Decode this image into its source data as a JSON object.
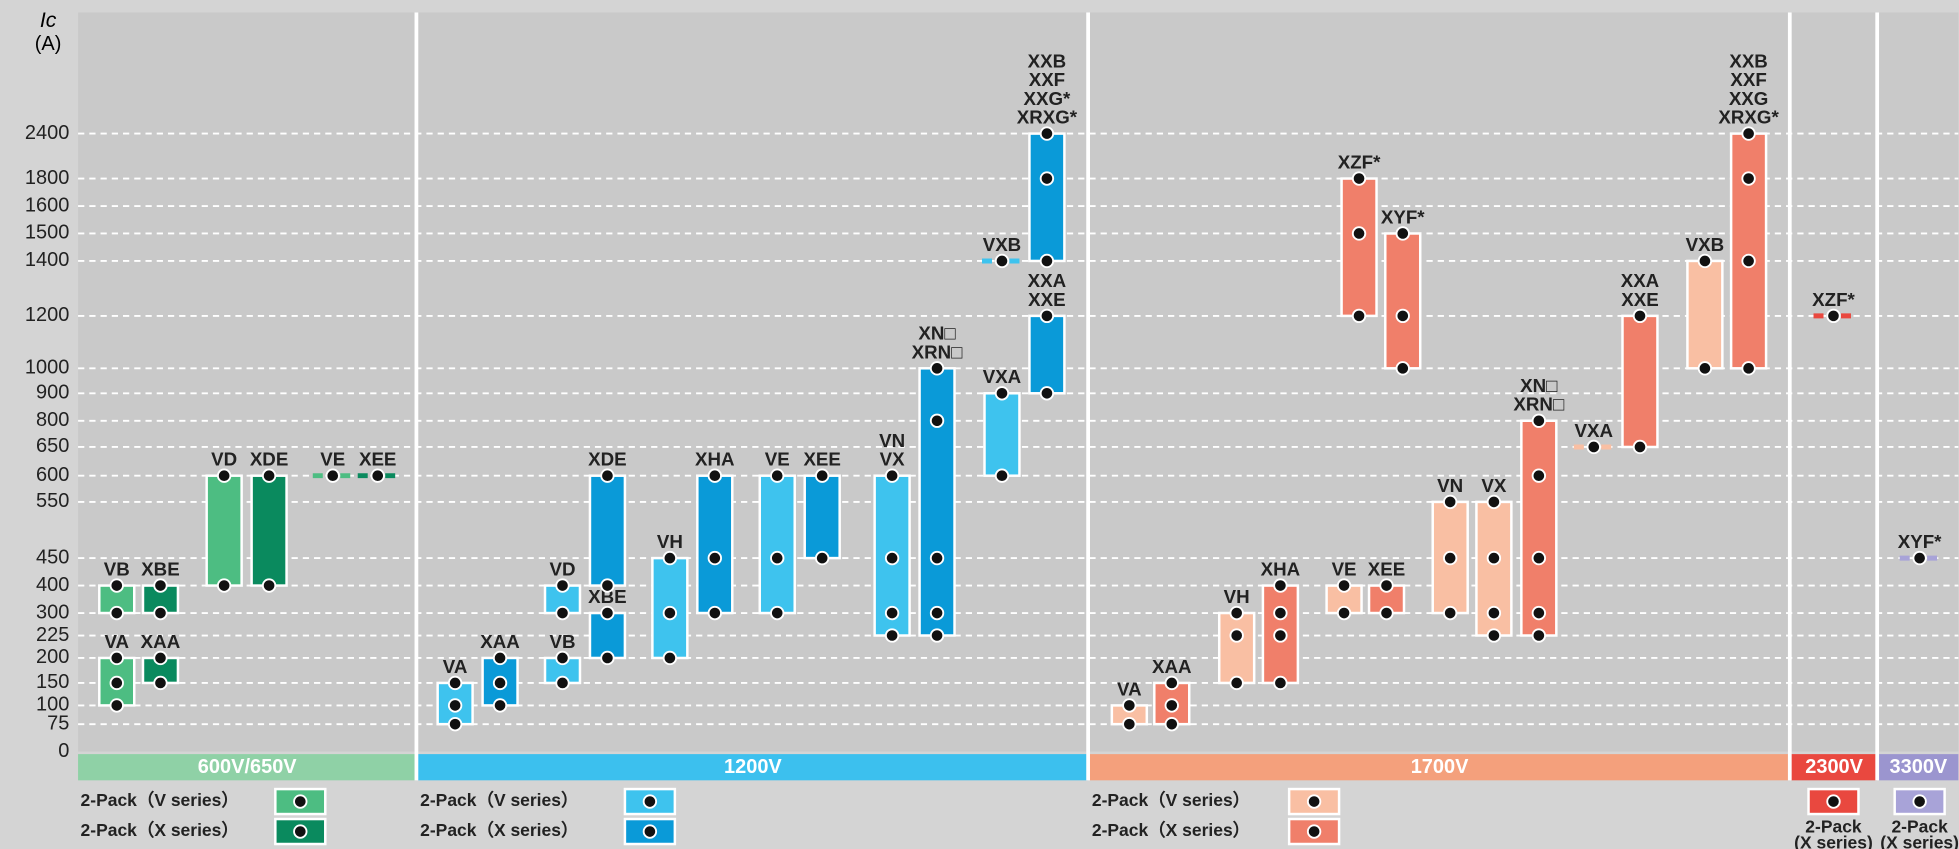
{
  "chart_data": {
    "type": "range",
    "y_label": "Ic",
    "y_unit": "(A)",
    "ylim": [
      0,
      2400
    ],
    "yticks": [
      0,
      75,
      100,
      150,
      200,
      225,
      300,
      400,
      450,
      550,
      600,
      650,
      800,
      900,
      1000,
      1200,
      1400,
      1500,
      1600,
      1800,
      2400
    ],
    "grid": true,
    "groups": [
      {
        "name": "600V/650V",
        "color": "#8fd1a6",
        "series": [
          {
            "name": "2-Pack（V series）",
            "color": "#4dbd82",
            "bars": [
              {
                "label": "VA",
                "values": [
                  100,
                  150,
                  200
                ]
              },
              {
                "label": "VB",
                "values": [
                  300,
                  400
                ]
              },
              {
                "label": "VD",
                "values": [
                  400,
                  600
                ]
              },
              {
                "label": "VE",
                "values": [
                  600
                ]
              }
            ]
          },
          {
            "name": "2-Pack（X series）",
            "color": "#0a8a5e",
            "bars": [
              {
                "label": "XAA",
                "values": [
                  150,
                  200
                ]
              },
              {
                "label": "XBE",
                "values": [
                  300,
                  400
                ]
              },
              {
                "label": "XDE",
                "values": [
                  400,
                  600
                ]
              },
              {
                "label": "XEE",
                "values": [
                  600
                ]
              }
            ]
          }
        ]
      },
      {
        "name": "1200V",
        "color": "#3cc0ee",
        "series": [
          {
            "name": "2-Pack（V series）",
            "color": "#3ec3ee",
            "bars": [
              {
                "label": "VA",
                "values": [
                  75,
                  100,
                  150
                ]
              },
              {
                "label": "VB",
                "values": [
                  150,
                  200
                ]
              },
              {
                "label": "VD",
                "values": [
                  300,
                  400
                ]
              },
              {
                "label": "VH",
                "values": [
                  200,
                  300,
                  450
                ]
              },
              {
                "label": "VE",
                "values": [
                  300,
                  450,
                  600
                ]
              },
              {
                "label": [
                  "VX",
                  "VN"
                ],
                "values": [
                  225,
                  300,
                  450,
                  600
                ]
              },
              {
                "label": "VXA",
                "values": [
                  600,
                  900
                ]
              },
              {
                "label": "VXB",
                "values": [
                  1400
                ]
              }
            ]
          },
          {
            "name": "2-Pack（X series）",
            "color": "#0a9ad8",
            "bars": [
              {
                "label": "XAA",
                "values": [
                  100,
                  150,
                  200
                ]
              },
              {
                "label": "XBE",
                "values": [
                  200,
                  300
                ]
              },
              {
                "label": "XDE",
                "values": [
                  400,
                  600
                ]
              },
              {
                "label": "XHA",
                "values": [
                  300,
                  450,
                  600
                ]
              },
              {
                "label": "XEE",
                "values": [
                  450,
                  600
                ]
              },
              {
                "label": [
                  "XRN□",
                  "XN□"
                ],
                "values": [
                  225,
                  300,
                  450,
                  800,
                  1000
                ]
              },
              {
                "label": [
                  "XXE",
                  "XXA"
                ],
                "values": [
                  900,
                  1200
                ]
              },
              {
                "label": [
                  "XRXG*",
                  "XXG*",
                  "XXF",
                  "XXB"
                ],
                "values": [
                  1400,
                  1800,
                  2400
                ]
              }
            ]
          }
        ]
      },
      {
        "name": "1700V",
        "color": "#f4a07c",
        "series": [
          {
            "name": "2-Pack（V series）",
            "color": "#f9bfa3",
            "bars": [
              {
                "label": "VA",
                "values": [
                  75,
                  100
                ]
              },
              {
                "label": "VH",
                "values": [
                  150,
                  225,
                  300
                ]
              },
              {
                "label": "VE",
                "values": [
                  300,
                  400
                ]
              },
              {
                "label": "VN",
                "values": [
                  300,
                  450,
                  550
                ]
              },
              {
                "label": "VX",
                "values": [
                  225,
                  300,
                  450,
                  550
                ]
              },
              {
                "label": "VXA",
                "values": [
                  650
                ]
              },
              {
                "label": "VXB",
                "values": [
                  1000,
                  1400
                ]
              }
            ]
          },
          {
            "name": "2-Pack（X series）",
            "color": "#f07f6a",
            "bars": [
              {
                "label": "XAA",
                "values": [
                  75,
                  100,
                  150
                ]
              },
              {
                "label": "XHA",
                "values": [
                  150,
                  225,
                  300,
                  400
                ]
              },
              {
                "label": "XEE",
                "values": [
                  300,
                  400
                ]
              },
              {
                "label": [
                  "XRN□",
                  "XN□"
                ],
                "values": [
                  225,
                  300,
                  450,
                  600,
                  800
                ]
              },
              {
                "label": [
                  "XXE",
                  "XXA"
                ],
                "values": [
                  650,
                  1200
                ]
              },
              {
                "label": "XZF*",
                "values": [
                  1200,
                  1500,
                  1800
                ]
              },
              {
                "label": "XYF*",
                "values": [
                  1000,
                  1200,
                  1500
                ]
              },
              {
                "label": [
                  "XRXG*",
                  "XXG",
                  "XXF",
                  "XXB"
                ],
                "values": [
                  1000,
                  1400,
                  1800,
                  2400
                ]
              }
            ]
          }
        ]
      },
      {
        "name": "2300V",
        "color": "#e9483f",
        "series": [
          {
            "name": [
              "2-Pack",
              "(X series)"
            ],
            "color": "#e9483f",
            "bars": [
              {
                "label": "XZF*",
                "values": [
                  1200
                ]
              }
            ]
          }
        ]
      },
      {
        "name": "3300V",
        "color": "#9b95cf",
        "series": [
          {
            "name": [
              "2-Pack",
              "(X series)"
            ],
            "color": "#a8a3d8",
            "bars": [
              {
                "label": "XYF*",
                "values": [
                  450
                ]
              }
            ]
          }
        ]
      }
    ]
  }
}
